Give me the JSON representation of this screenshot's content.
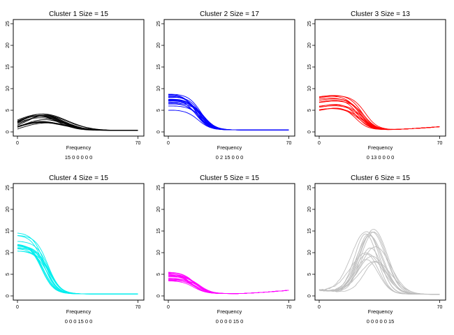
{
  "chart_data": [
    {
      "type": "line",
      "title": "Cluster 1 Size = 15",
      "xlabel": "Frequency",
      "counts_text": "15  0  0  0  0  0",
      "color": "#000000",
      "xlim": [
        0,
        71
      ],
      "ylim": [
        0,
        25
      ],
      "xticks": [
        0,
        70
      ],
      "yticks": [
        0,
        5,
        10,
        15,
        20,
        25
      ],
      "profile": {
        "base": 2.0,
        "peak": 2.6,
        "peak_x": 14,
        "width": 9,
        "tail": 0.35,
        "spread": 0.45
      },
      "series_count": 15
    },
    {
      "type": "line",
      "title": "Cluster 2 Size = 17",
      "xlabel": "Frequency",
      "counts_text": "0  2  15  0  0  0",
      "color": "#0000ff",
      "xlim": [
        0,
        71
      ],
      "ylim": [
        0,
        25
      ],
      "xticks": [
        0,
        70
      ],
      "yticks": [
        0,
        5,
        10,
        15,
        20,
        25
      ],
      "profile": {
        "base": 6.5,
        "peak": 7.0,
        "peak_x": 6,
        "width": 10,
        "tail": 0.45,
        "spread": 0.3
      },
      "series_count": 17
    },
    {
      "type": "line",
      "title": "Cluster 3 Size = 13",
      "xlabel": "Frequency",
      "counts_text": "0  13  0  0  0  0",
      "color": "#ff0000",
      "xlim": [
        0,
        71
      ],
      "ylim": [
        0,
        25
      ],
      "xticks": [
        0,
        70
      ],
      "yticks": [
        0,
        5,
        10,
        15,
        20,
        25
      ],
      "profile": {
        "base": 6.0,
        "peak": 7.2,
        "peak_x": 10,
        "width": 11,
        "tail": 1.0,
        "spread": 0.3
      },
      "series_count": 13
    },
    {
      "type": "line",
      "title": "Cluster 4 Size = 15",
      "xlabel": "Frequency",
      "counts_text": "0  0  0  15  0  0",
      "color": "#00eeee",
      "xlim": [
        0,
        71
      ],
      "ylim": [
        0,
        25
      ],
      "xticks": [
        0,
        70
      ],
      "yticks": [
        0,
        5,
        10,
        15,
        20,
        25
      ],
      "profile": {
        "base": 12.5,
        "peak": 12.8,
        "peak_x": 3,
        "width": 10,
        "tail": 0.45,
        "spread": 0.25
      },
      "series_count": 15
    },
    {
      "type": "line",
      "title": "Cluster 5 Size = 15",
      "xlabel": "Frequency",
      "counts_text": "0  0  0  0  15  0",
      "color": "#ff00ff",
      "xlim": [
        0,
        71
      ],
      "ylim": [
        0,
        25
      ],
      "xticks": [
        0,
        70
      ],
      "yticks": [
        0,
        5,
        10,
        15,
        20,
        25
      ],
      "profile": {
        "base": 4.0,
        "peak": 4.2,
        "peak_x": 3,
        "width": 10,
        "tail": 1.1,
        "spread": 0.35
      },
      "series_count": 15
    },
    {
      "type": "line",
      "title": "Cluster 6 Size = 15",
      "xlabel": "Frequency",
      "counts_text": "0  0  0  0  0  15",
      "color": "#bebebe",
      "xlim": [
        0,
        71
      ],
      "ylim": [
        0,
        25
      ],
      "xticks": [
        0,
        70
      ],
      "yticks": [
        0,
        5,
        10,
        15,
        20,
        25
      ],
      "profile": {
        "base": 1.5,
        "peak": 11.0,
        "peak_x": 30,
        "width": 8,
        "tail": 0.3,
        "spread": 0.35
      },
      "series_count": 15
    }
  ]
}
